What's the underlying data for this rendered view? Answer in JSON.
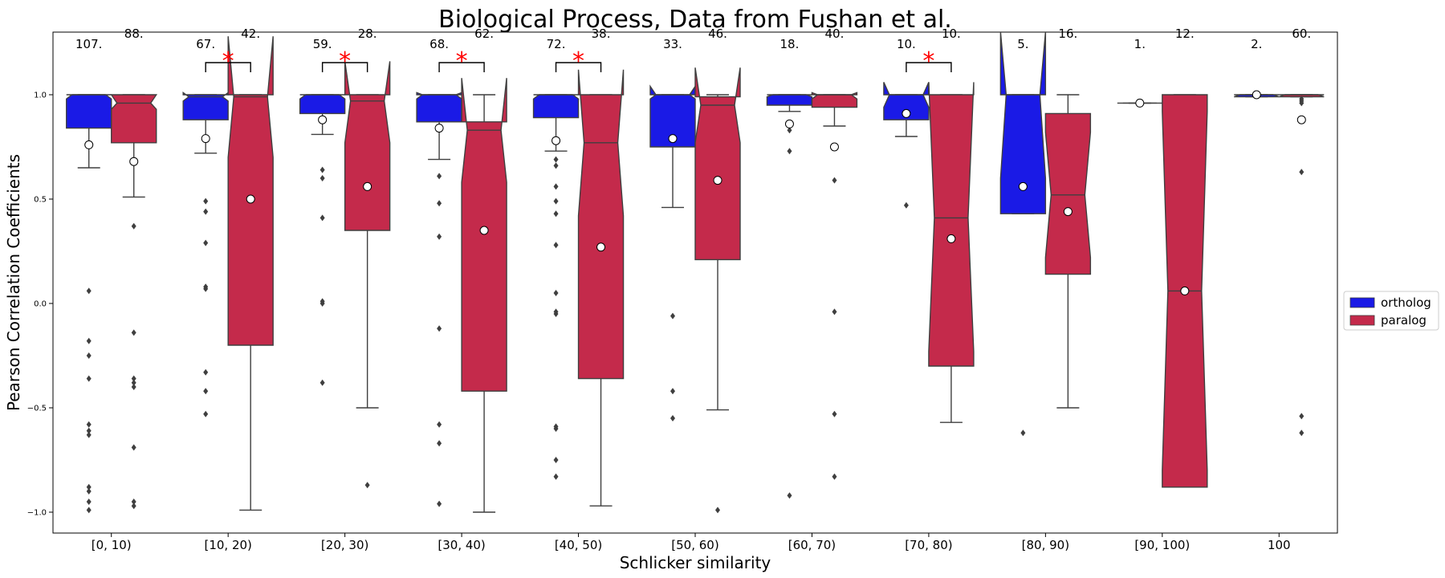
{
  "chart_data": {
    "type": "box",
    "title": "Biological Process, Data from Fushan et al.",
    "xlabel": "Schlicker similarity",
    "ylabel": "Pearson Correlation Coefficients",
    "categories": [
      "[0, 10)",
      "[10, 20)",
      "[20, 30)",
      "[30, 40)",
      "[40, 50)",
      "[50, 60)",
      "[60, 70)",
      "[70, 80)",
      "[80, 90)",
      "[90, 100)",
      "100"
    ],
    "ylim": [
      -1.1,
      1.3
    ],
    "yticks": [
      1.0,
      0.5,
      0.0,
      -0.5,
      -1.0
    ],
    "ytick_labels": [
      "1.0",
      "0.5",
      "0.0",
      "−0.5",
      "−1.0"
    ],
    "grid": false,
    "legend_position": "right",
    "series": [
      {
        "name": "ortholog",
        "color": "#1a1ae6",
        "counts": [
          "107.",
          "67.",
          "59.",
          "68.",
          "72.",
          "33.",
          "18.",
          "10.",
          "5.",
          "1.",
          "2."
        ],
        "boxes": [
          {
            "q1": 0.84,
            "med": 1.0,
            "q3": 1.0,
            "notch_lo": 0.98,
            "notch_hi": 1.0,
            "wlo": 0.65,
            "whi": 1.0,
            "mean": 0.76,
            "outliers": [
              0.06,
              -0.18,
              -0.25,
              -0.36,
              -0.58,
              -0.61,
              -0.63,
              -0.88,
              -0.9,
              -0.95,
              -0.99
            ]
          },
          {
            "q1": 0.88,
            "med": 0.99,
            "q3": 1.0,
            "notch_lo": 0.97,
            "notch_hi": 1.01,
            "wlo": 0.72,
            "whi": 1.0,
            "mean": 0.79,
            "outliers": [
              0.49,
              0.44,
              0.29,
              0.08,
              0.07,
              -0.33,
              -0.42,
              -0.53
            ]
          },
          {
            "q1": 0.91,
            "med": 1.0,
            "q3": 1.0,
            "notch_lo": 0.98,
            "notch_hi": 1.0,
            "wlo": 0.81,
            "whi": 1.0,
            "mean": 0.88,
            "outliers": [
              0.64,
              0.6,
              0.41,
              0.01,
              0.0,
              -0.38
            ]
          },
          {
            "q1": 0.87,
            "med": 1.0,
            "q3": 1.0,
            "notch_lo": 0.98,
            "notch_hi": 1.01,
            "wlo": 0.69,
            "whi": 1.0,
            "mean": 0.84,
            "outliers": [
              0.61,
              0.48,
              0.32,
              -0.12,
              -0.58,
              -0.67,
              -0.96
            ]
          },
          {
            "q1": 0.89,
            "med": 1.0,
            "q3": 1.0,
            "notch_lo": 0.98,
            "notch_hi": 1.0,
            "wlo": 0.73,
            "whi": 1.0,
            "mean": 0.78,
            "outliers": [
              0.69,
              0.66,
              0.56,
              0.49,
              0.43,
              0.28,
              0.05,
              -0.05,
              -0.04,
              -0.59,
              -0.6,
              -0.75,
              -0.83
            ]
          },
          {
            "q1": 0.75,
            "med": 1.0,
            "q3": 1.0,
            "notch_lo": 0.98,
            "notch_hi": 1.04,
            "wlo": 0.46,
            "whi": 1.0,
            "mean": 0.79,
            "outliers": [
              -0.06,
              -0.42,
              -0.55
            ]
          },
          {
            "q1": 0.95,
            "med": 1.0,
            "q3": 1.0,
            "notch_lo": 0.99,
            "notch_hi": 1.0,
            "wlo": 0.92,
            "whi": 1.0,
            "mean": 0.86,
            "outliers": [
              0.83,
              0.73,
              -0.92
            ]
          },
          {
            "q1": 0.88,
            "med": 1.0,
            "q3": 1.0,
            "notch_lo": 0.94,
            "notch_hi": 1.06,
            "wlo": 0.8,
            "whi": 1.0,
            "mean": 0.91,
            "outliers": [
              0.47
            ]
          },
          {
            "q1": 0.43,
            "med": 1.0,
            "q3": 1.0,
            "notch_lo": 0.6,
            "notch_hi": 1.3,
            "wlo": 0.43,
            "whi": 1.0,
            "mean": 0.56,
            "outliers": [
              -0.62
            ]
          },
          {
            "q1": 0.96,
            "med": 0.96,
            "q3": 0.96,
            "notch_lo": 0.96,
            "notch_hi": 0.96,
            "wlo": 0.96,
            "whi": 0.96,
            "mean": 0.96,
            "outliers": []
          },
          {
            "q1": 0.99,
            "med": 1.0,
            "q3": 1.0,
            "notch_lo": 0.99,
            "notch_hi": 1.0,
            "wlo": 0.99,
            "whi": 1.0,
            "mean": 1.0,
            "outliers": []
          }
        ]
      },
      {
        "name": "paralog",
        "color": "#c42a4b",
        "counts": [
          "88.",
          "42.",
          "28.",
          "62.",
          "38.",
          "46.",
          "40.",
          "10.",
          "16.",
          "12.",
          "60."
        ],
        "boxes": [
          {
            "q1": 0.77,
            "med": 0.96,
            "q3": 1.0,
            "notch_lo": 0.93,
            "notch_hi": 1.0,
            "wlo": 0.51,
            "whi": 1.0,
            "mean": 0.68,
            "outliers": [
              0.37,
              -0.14,
              -0.36,
              -0.38,
              -0.4,
              -0.69,
              -0.95,
              -0.97
            ]
          },
          {
            "q1": -0.2,
            "med": 0.99,
            "q3": 1.0,
            "notch_lo": 0.7,
            "notch_hi": 1.28,
            "wlo": -0.99,
            "whi": 1.0,
            "mean": 0.5,
            "outliers": []
          },
          {
            "q1": 0.35,
            "med": 0.97,
            "q3": 1.0,
            "notch_lo": 0.77,
            "notch_hi": 1.16,
            "wlo": -0.5,
            "whi": 1.0,
            "mean": 0.56,
            "outliers": [
              -0.87
            ]
          },
          {
            "q1": -0.42,
            "med": 0.83,
            "q3": 0.87,
            "notch_lo": 0.58,
            "notch_hi": 1.08,
            "wlo": -1.0,
            "whi": 1.0,
            "mean": 0.35,
            "outliers": []
          },
          {
            "q1": -0.36,
            "med": 0.77,
            "q3": 1.0,
            "notch_lo": 0.42,
            "notch_hi": 1.12,
            "wlo": -0.97,
            "whi": 1.0,
            "mean": 0.27,
            "outliers": []
          },
          {
            "q1": 0.21,
            "med": 0.95,
            "q3": 0.99,
            "notch_lo": 0.77,
            "notch_hi": 1.13,
            "wlo": -0.51,
            "whi": 1.0,
            "mean": 0.59,
            "outliers": [
              -0.99
            ]
          },
          {
            "q1": 0.94,
            "med": 1.0,
            "q3": 1.0,
            "notch_lo": 0.98,
            "notch_hi": 1.01,
            "wlo": 0.85,
            "whi": 1.0,
            "mean": 0.75,
            "outliers": [
              0.59,
              -0.04,
              -0.53,
              -0.83
            ]
          },
          {
            "q1": -0.3,
            "med": 0.41,
            "q3": 1.0,
            "notch_lo": -0.23,
            "notch_hi": 1.06,
            "wlo": -0.57,
            "whi": 1.0,
            "mean": 0.31,
            "outliers": []
          },
          {
            "q1": 0.14,
            "med": 0.52,
            "q3": 0.91,
            "notch_lo": 0.22,
            "notch_hi": 0.82,
            "wlo": -0.5,
            "whi": 1.0,
            "mean": 0.44,
            "outliers": []
          },
          {
            "q1": -0.88,
            "med": 0.06,
            "q3": 1.0,
            "notch_lo": -0.8,
            "notch_hi": 0.92,
            "wlo": -0.88,
            "whi": 1.0,
            "mean": 0.06,
            "outliers": []
          },
          {
            "q1": 0.99,
            "med": 1.0,
            "q3": 1.0,
            "notch_lo": 0.99,
            "notch_hi": 1.0,
            "wlo": 0.99,
            "whi": 1.0,
            "mean": 0.88,
            "outliers": [
              0.98,
              0.97,
              0.96,
              0.63,
              -0.54,
              -0.62
            ]
          }
        ]
      }
    ],
    "significance": {
      "marker": "*",
      "color": "#ff0000",
      "categories": [
        "[10, 20)",
        "[20, 30)",
        "[30, 40)",
        "[40, 50)",
        "[70, 80)"
      ]
    },
    "legend": [
      {
        "label": "ortholog",
        "color": "#1a1ae6"
      },
      {
        "label": "paralog",
        "color": "#c42a4b"
      }
    ]
  }
}
